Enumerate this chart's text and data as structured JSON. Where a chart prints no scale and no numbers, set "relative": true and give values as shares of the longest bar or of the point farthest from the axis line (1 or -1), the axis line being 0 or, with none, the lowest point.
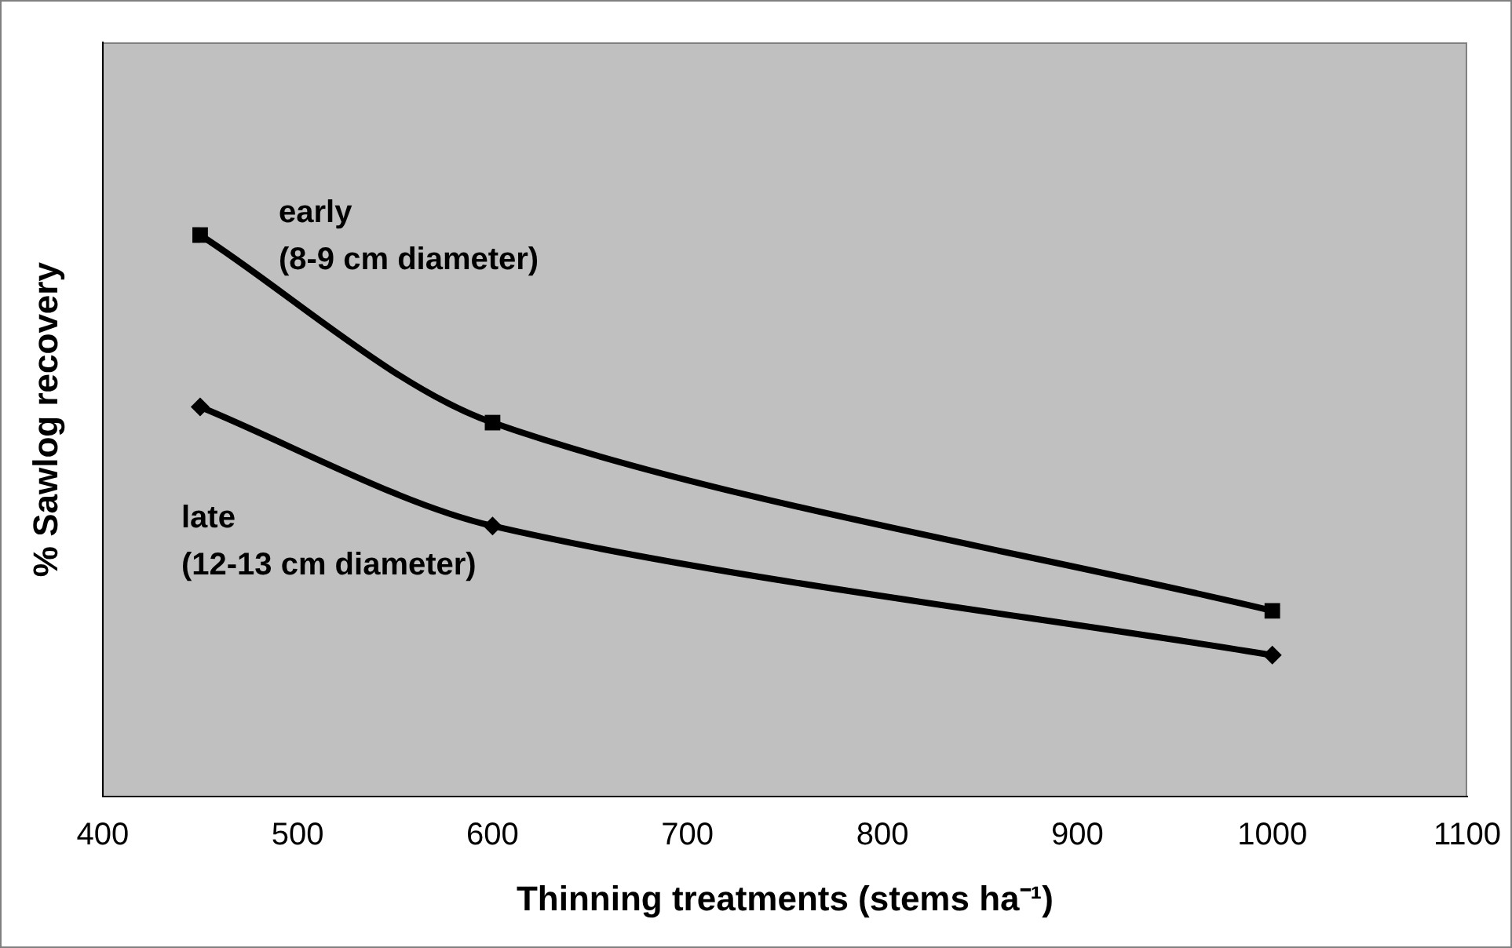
{
  "chart_data": {
    "type": "line",
    "xlabel": "Thinning treatments (stems ha⁻¹)",
    "ylabel": "% Sawlog recovery",
    "relative": true,
    "xlim": [
      400,
      1100
    ],
    "xticks": [
      400,
      500,
      600,
      700,
      800,
      900,
      1000,
      1100
    ],
    "grid": false,
    "legend": false,
    "line_style": "solid",
    "series": [
      {
        "name": "early (8-9 cm diameter)",
        "color": "#000000",
        "marker": "square",
        "x": [
          450,
          600,
          1000
        ],
        "values": [
          1,
          0.666,
          0.331
        ]
      },
      {
        "name": "late (12-13 cm diameter)",
        "color": "#000000",
        "marker": "diamond",
        "x": [
          450,
          600,
          1000
        ],
        "values": [
          0.694,
          0.482,
          0.252
        ]
      }
    ]
  }
}
